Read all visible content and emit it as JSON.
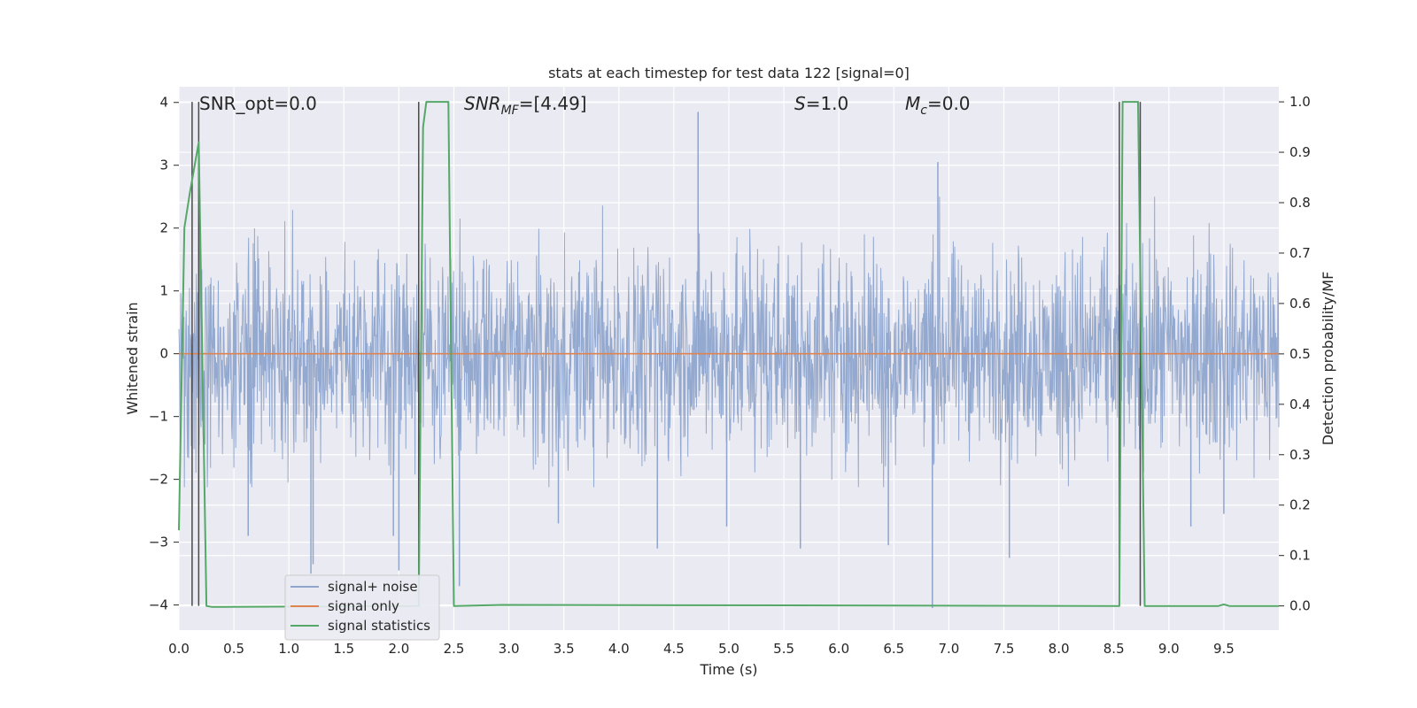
{
  "chart_data": {
    "type": "line",
    "title": "stats at each timestep for test data 122 [signal=0]",
    "xlabel": "Time (s)",
    "ylabel_left": "Whitened strain",
    "ylabel_right": "Detection probability/MF",
    "xlim": [
      0.0,
      10.0
    ],
    "ylim_left": [
      -4.4,
      4.25
    ],
    "ylim_right": [
      -0.048,
      1.03
    ],
    "x_ticks": [
      0.0,
      0.5,
      1.0,
      1.5,
      2.0,
      2.5,
      3.0,
      3.5,
      4.0,
      4.5,
      5.0,
      5.5,
      6.0,
      6.5,
      7.0,
      7.5,
      8.0,
      8.5,
      9.0,
      9.5
    ],
    "x_tick_labels": [
      "0.0",
      "0.5",
      "1.0",
      "1.5",
      "2.0",
      "2.5",
      "3.0",
      "3.5",
      "4.0",
      "4.5",
      "5.0",
      "5.5",
      "6.0",
      "6.5",
      "7.0",
      "7.5",
      "8.0",
      "8.5",
      "9.0",
      "9.5"
    ],
    "y_ticks_left": [
      4,
      3,
      2,
      1,
      0,
      -1,
      -2,
      -3,
      -4
    ],
    "y_tick_labels_left": [
      "4",
      "3",
      "2",
      "1",
      "0",
      "−1",
      "−2",
      "−3",
      "−4"
    ],
    "y_ticks_right": [
      1.0,
      0.9,
      0.8,
      0.7,
      0.6,
      0.5,
      0.4,
      0.3,
      0.2,
      0.1,
      0.0
    ],
    "y_tick_labels_right": [
      "1.0",
      "0.9",
      "0.8",
      "0.7",
      "0.6",
      "0.5",
      "0.4",
      "0.3",
      "0.2",
      "0.1",
      "0.0"
    ],
    "grid": true,
    "legend_position": "bottom-left",
    "annotations": {
      "snr_opt": "SNR_opt=0.0",
      "snr_mf_main": "SNR",
      "snr_mf_sub": "MF",
      "snr_mf_value": "=[4.49]",
      "s_main": "S",
      "s_value": "=1.0",
      "mc_main": "M",
      "mc_sub": "c",
      "mc_value": "=0.0"
    },
    "series": [
      {
        "name": "signal+ noise",
        "color": "#8fa5cc",
        "axis": "left",
        "kind": "noise",
        "envelope_typical": [
          -1.7,
          2.0
        ],
        "spikes": [
          {
            "x": 0.63,
            "y": -2.9
          },
          {
            "x": 1.2,
            "y": -3.5
          },
          {
            "x": 1.22,
            "y": -3.35
          },
          {
            "x": 1.95,
            "y": -2.9
          },
          {
            "x": 2.0,
            "y": -3.45
          },
          {
            "x": 2.55,
            "y": -3.7
          },
          {
            "x": 3.45,
            "y": -2.7
          },
          {
            "x": 4.35,
            "y": -3.1
          },
          {
            "x": 4.72,
            "y": 3.85
          },
          {
            "x": 4.98,
            "y": -2.75
          },
          {
            "x": 5.65,
            "y": -3.1
          },
          {
            "x": 6.45,
            "y": -3.05
          },
          {
            "x": 6.85,
            "y": -4.05
          },
          {
            "x": 6.9,
            "y": 3.05
          },
          {
            "x": 7.55,
            "y": -3.25
          },
          {
            "x": 8.55,
            "y": -3.25
          },
          {
            "x": 9.2,
            "y": -2.75
          },
          {
            "x": 9.5,
            "y": -2.55
          }
        ]
      },
      {
        "name": "signal only",
        "color": "#dd8452",
        "axis": "left",
        "x": [
          0.0,
          10.0
        ],
        "y": [
          0.0,
          0.0
        ]
      },
      {
        "name": "signal statistics",
        "color": "#55a868",
        "axis": "right",
        "x": [
          0.0,
          0.05,
          0.1,
          0.18,
          0.25,
          0.3,
          2.18,
          2.22,
          2.25,
          2.45,
          2.5,
          2.95,
          8.55,
          8.58,
          8.62,
          8.72,
          8.78,
          9.45,
          9.5,
          9.55,
          10.0
        ],
        "y": [
          0.15,
          0.75,
          0.82,
          0.92,
          0.0,
          -0.002,
          0.0,
          0.95,
          1.0,
          1.0,
          0.0,
          0.002,
          0.0,
          1.0,
          1.0,
          1.0,
          0.0,
          0.0,
          0.003,
          0.0,
          0.0
        ]
      }
    ],
    "vertical_markers": {
      "color": "#4a4a4a",
      "x": [
        0.12,
        0.18,
        2.18,
        8.55,
        8.74
      ]
    }
  }
}
